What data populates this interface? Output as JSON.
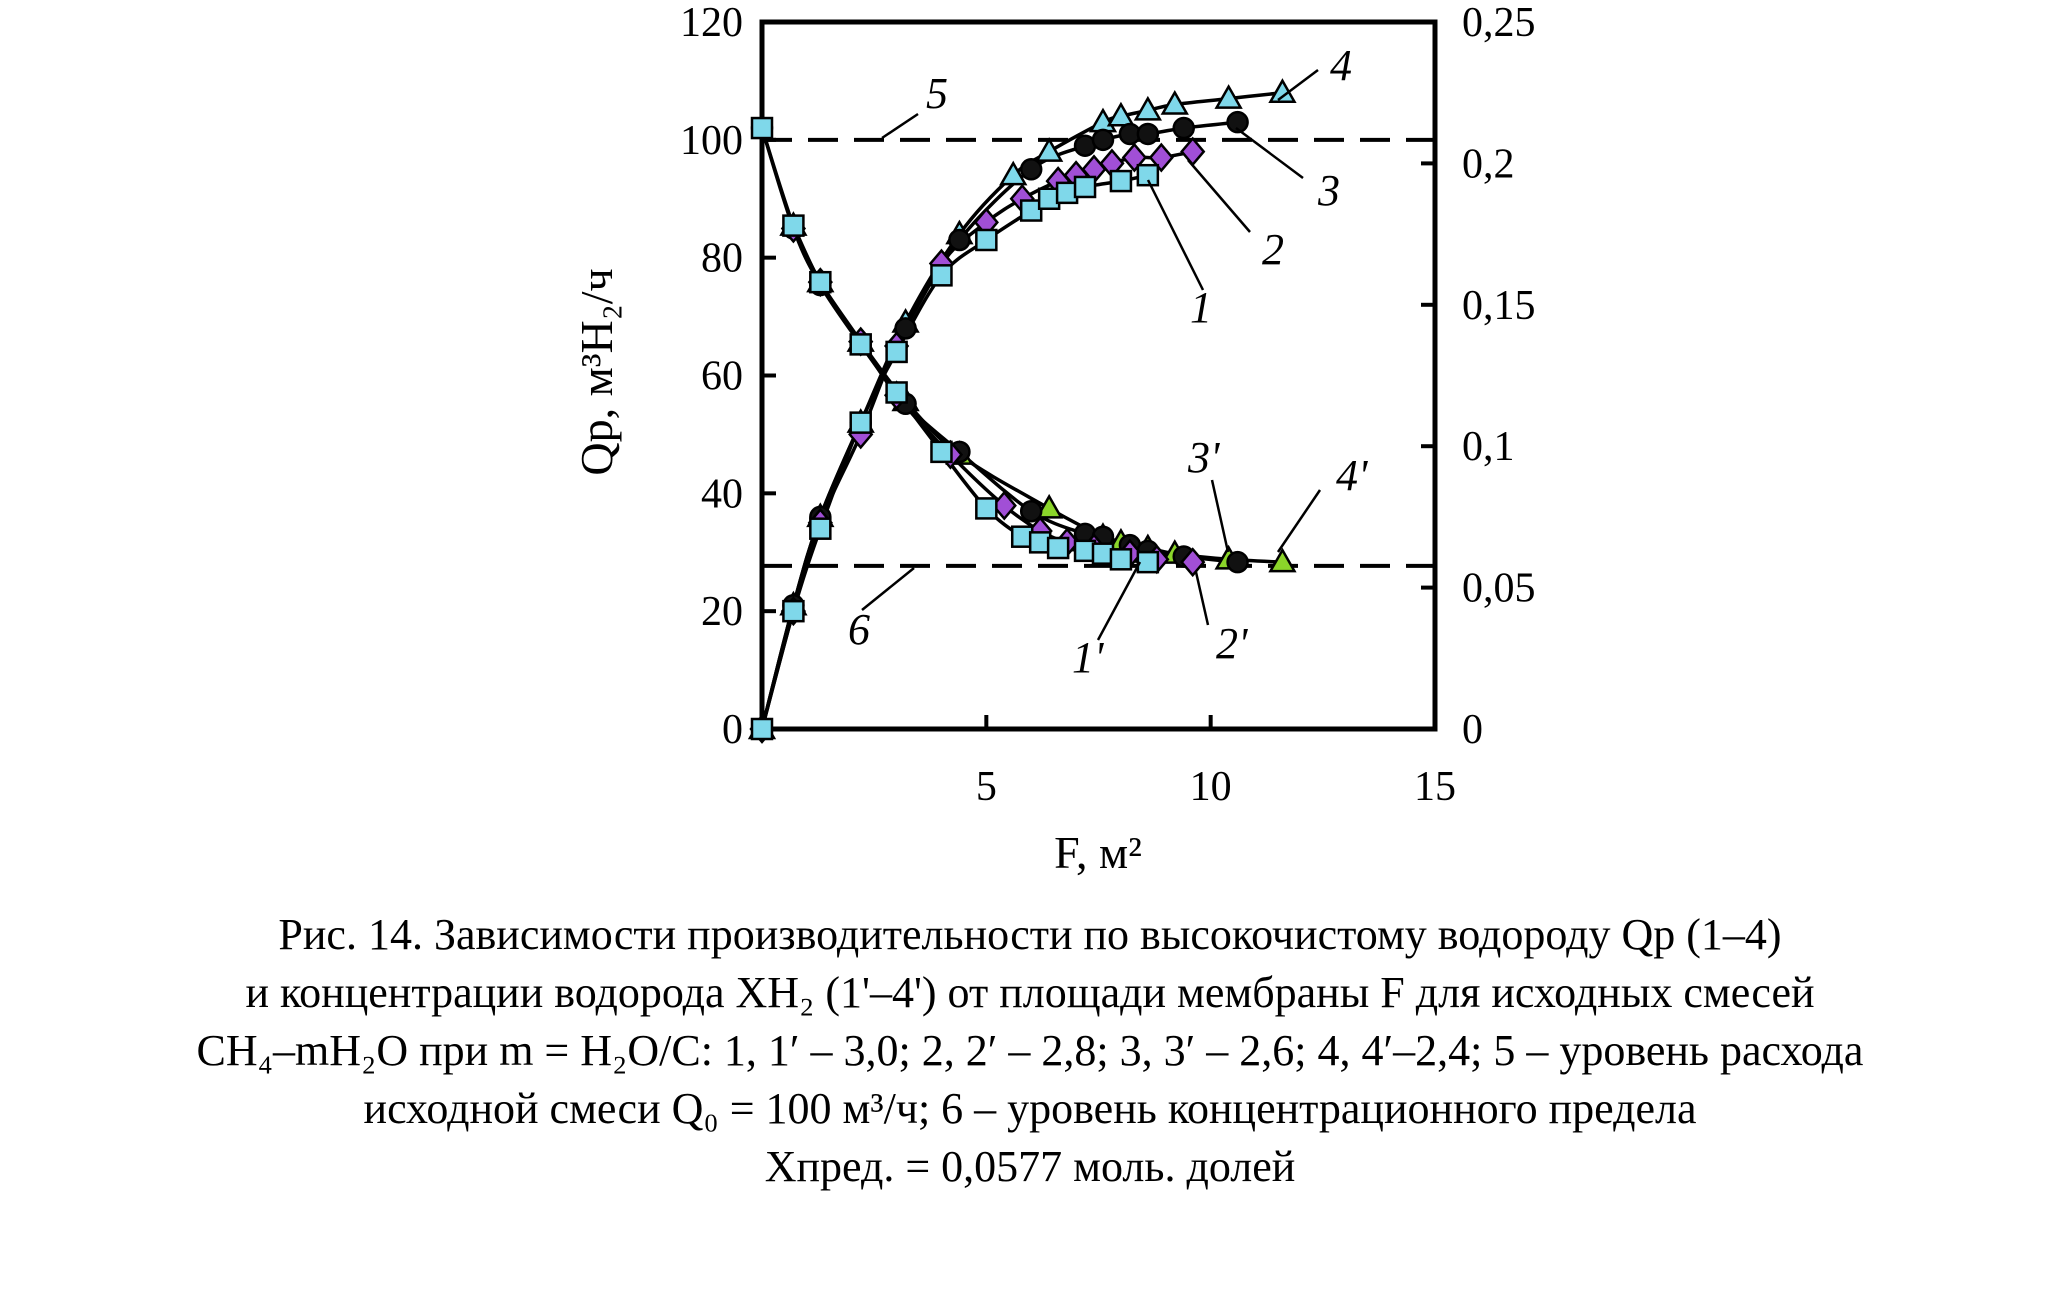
{
  "chart_data": {
    "type": "scatter",
    "x_axis": {
      "label": "F, м²",
      "ticks": [
        "5",
        "10",
        "15"
      ],
      "range": [
        0,
        15
      ]
    },
    "y_axis_left": {
      "label": "Qp, м³H₂/ч",
      "ticks": [
        "0",
        "20",
        "40",
        "60",
        "80",
        "100",
        "120"
      ],
      "range": [
        0,
        120
      ]
    },
    "y_axis_right": {
      "label": "",
      "ticks": [
        "0",
        "0,05",
        "0,1",
        "0,15",
        "0,2",
        "0,25"
      ],
      "range": [
        0,
        0.25
      ]
    },
    "colors": {
      "1": "#7fd8ea",
      "2": "#a14fd6",
      "3": "#111111",
      "4": "#7fd8ea",
      "1'": "#7fd8ea",
      "2'": "#a14fd6",
      "3'": "#111111",
      "4'": "#8bd52a"
    },
    "series": [
      {
        "name": "1",
        "axis": "left",
        "marker": "square",
        "x": [
          0,
          0.7,
          1.3,
          2.2,
          3.0,
          4.0,
          5.0,
          6.0,
          6.4,
          6.8,
          7.2,
          8.0,
          8.6
        ],
        "y": [
          0,
          20,
          34,
          52,
          64,
          77,
          83,
          88,
          90,
          91,
          92,
          93,
          94
        ]
      },
      {
        "name": "2",
        "axis": "left",
        "marker": "diamond",
        "x": [
          0,
          0.7,
          1.3,
          2.2,
          3.0,
          4.0,
          5.0,
          5.8,
          6.6,
          7.0,
          7.4,
          7.8,
          8.3,
          8.9,
          9.6
        ],
        "y": [
          0,
          20,
          35,
          50,
          65,
          79,
          86,
          90,
          93,
          94,
          95,
          96,
          97,
          97,
          98
        ]
      },
      {
        "name": "3",
        "axis": "left",
        "marker": "circle",
        "x": [
          0,
          0.7,
          1.3,
          2.2,
          3.2,
          4.4,
          6.0,
          7.2,
          7.6,
          8.2,
          8.6,
          9.4,
          10.6
        ],
        "y": [
          0,
          21,
          36,
          52,
          68,
          83,
          95,
          99,
          100,
          101,
          101,
          102,
          103
        ]
      },
      {
        "name": "4",
        "axis": "left",
        "marker": "triangle",
        "x": [
          0,
          0.7,
          1.3,
          2.2,
          3.2,
          4.4,
          5.6,
          6.4,
          7.6,
          8.0,
          8.6,
          9.2,
          10.4,
          11.6
        ],
        "y": [
          0,
          21,
          36,
          52,
          69,
          84,
          94,
          98,
          103,
          104,
          105,
          106,
          107,
          108
        ]
      },
      {
        "name": "1'",
        "axis": "right",
        "marker": "square",
        "x": [
          0,
          0.7,
          1.3,
          2.2,
          3.0,
          4.0,
          5.0,
          5.8,
          6.2,
          6.6,
          7.2,
          7.6,
          8.0,
          8.6
        ],
        "y": [
          0.2125,
          0.178,
          0.158,
          0.136,
          0.119,
          0.098,
          0.078,
          0.068,
          0.066,
          0.064,
          0.063,
          0.062,
          0.06,
          0.059
        ]
      },
      {
        "name": "2'",
        "axis": "right",
        "marker": "diamond",
        "x": [
          0.7,
          1.3,
          2.2,
          3.0,
          4.2,
          5.4,
          6.2,
          6.8,
          7.4,
          8.2,
          8.8,
          9.6
        ],
        "y": [
          0.177,
          0.158,
          0.137,
          0.118,
          0.097,
          0.079,
          0.07,
          0.066,
          0.064,
          0.062,
          0.06,
          0.059
        ]
      },
      {
        "name": "3'",
        "axis": "right",
        "marker": "circle",
        "x": [
          0,
          0.7,
          1.3,
          2.2,
          3.2,
          4.4,
          6.0,
          7.2,
          7.6,
          8.2,
          8.6,
          9.4,
          10.6
        ],
        "y": [
          0.2125,
          0.177,
          0.157,
          0.136,
          0.115,
          0.098,
          0.077,
          0.069,
          0.068,
          0.065,
          0.063,
          0.061,
          0.059
        ]
      },
      {
        "name": "4'",
        "axis": "right",
        "marker": "triangle",
        "x": [
          0.7,
          1.3,
          2.2,
          3.2,
          4.4,
          6.4,
          7.6,
          8.0,
          8.6,
          9.2,
          10.4,
          11.6
        ],
        "y": [
          0.178,
          0.158,
          0.137,
          0.116,
          0.097,
          0.078,
          0.068,
          0.066,
          0.064,
          0.062,
          0.06,
          0.059
        ]
      }
    ],
    "reference_lines": [
      {
        "name": "5",
        "axis": "left",
        "y": 100,
        "style": "dashed"
      },
      {
        "name": "6",
        "axis": "right",
        "y": 0.0577,
        "style": "dashed"
      }
    ],
    "annotations": [
      "1",
      "2",
      "3",
      "4",
      "1'",
      "2'",
      "3'",
      "4'",
      "5",
      "6"
    ]
  },
  "caption": {
    "line1": "Рис. 14. Зависимости производительности по высокочистому водороду Qp (1–4)",
    "line2": "и концентрации водорода XH₂ (1'–4') от площади мембраны F для исходных смесей",
    "line3": "CH₄–mH₂O при m = H₂O/C: 1, 1′ – 3,0; 2, 2′ – 2,8; 3, 3′ – 2,6; 4, 4′–2,4; 5 – уровень расхода",
    "line4": "исходной смеси Q₀ = 100 м³/ч; 6 – уровень концентрационного предела",
    "line5": "Xпред. = 0,0577 моль. долей"
  }
}
